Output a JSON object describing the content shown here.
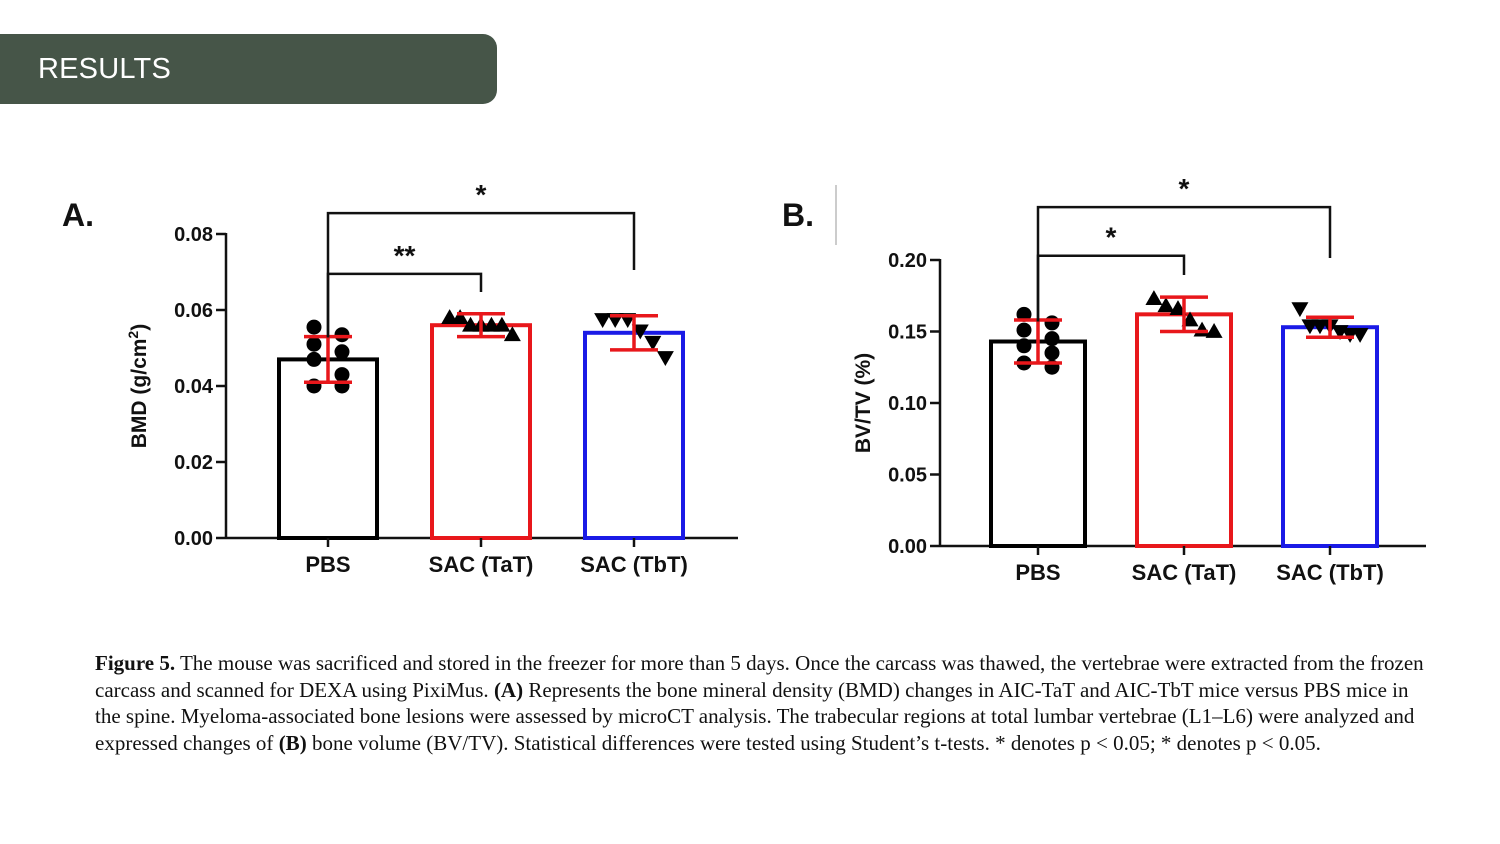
{
  "header": {
    "title": "RESULTS",
    "bg_color": "#465548"
  },
  "colors": {
    "PBS": "#000000",
    "SAC (TaT)": "#e8171b",
    "SAC (TbT)": "#1a1ae6",
    "error_bar": "#e8171b"
  },
  "caption": {
    "lead": "Figure 5.",
    "p1": " The mouse was sacrificed and stored in the freezer for more than 5 days. Once the carcass was thawed, the vertebrae were extracted from the frozen carcass and scanned for DEXA using PixiMus. ",
    "tagA": "(A)",
    "p2": " Represents the bone mineral density (BMD) changes in AIC-TaT and AIC-TbT mice versus PBS mice in the spine. Myeloma-associated bone lesions were assessed by microCT analysis. The trabecular regions at total lumbar vertebrae (L1–L6) were analyzed and expressed changes of ",
    "tagB": "(B)",
    "p3": " bone volume (BV/TV). Statistical differences were tested using Student’s t-tests. * denotes p < 0.05; * denotes p < 0.05."
  },
  "chart_data": [
    {
      "type": "bar",
      "panel": "A.",
      "ylabel": "BMD (g/cm",
      "ylabel_sup": "2",
      "ylabel_end": ")",
      "ylim": [
        0,
        0.08
      ],
      "yticks": [
        "0.00",
        "0.02",
        "0.04",
        "0.06",
        "0.08"
      ],
      "categories": [
        "PBS",
        "SAC (TaT)",
        "SAC (TbT)"
      ],
      "values": [
        0.047,
        0.056,
        0.054
      ],
      "errors": [
        0.006,
        0.003,
        0.0045
      ],
      "marker": [
        "circle",
        "triangle-up",
        "triangle-down"
      ],
      "points": [
        [
          0.0555,
          0.0535,
          0.051,
          0.049,
          0.047,
          0.043,
          0.04,
          0.04
        ],
        [
          0.058,
          0.058,
          0.056,
          0.056,
          0.056,
          0.056,
          0.0535
        ],
        [
          0.0575,
          0.0575,
          0.0575,
          0.0545,
          0.0515,
          0.0475
        ]
      ],
      "significance": [
        {
          "from": 0,
          "to": 1,
          "label": "**",
          "y": 0.0695
        },
        {
          "from": 0,
          "to": 2,
          "label": "*",
          "y": 0.0855
        }
      ]
    },
    {
      "type": "bar",
      "panel": "B.",
      "ylabel": "BV/TV (%)",
      "ylim": [
        0,
        0.2
      ],
      "yticks": [
        "0.00",
        "0.05",
        "0.10",
        "0.15",
        "0.20"
      ],
      "categories": [
        "PBS",
        "SAC (TaT)",
        "SAC (TbT)"
      ],
      "values": [
        0.143,
        0.162,
        0.153
      ],
      "errors": [
        0.015,
        0.012,
        0.007
      ],
      "marker": [
        "circle",
        "triangle-up",
        "triangle-down"
      ],
      "points": [
        [
          0.162,
          0.156,
          0.151,
          0.145,
          0.14,
          0.135,
          0.128,
          0.125
        ],
        [
          0.173,
          0.168,
          0.166,
          0.158,
          0.151,
          0.15
        ],
        [
          0.166,
          0.154,
          0.154,
          0.154,
          0.15,
          0.148,
          0.148
        ]
      ],
      "significance": [
        {
          "from": 0,
          "to": 1,
          "label": "*",
          "y": 0.203
        },
        {
          "from": 0,
          "to": 2,
          "label": "*",
          "y": 0.237
        }
      ]
    }
  ]
}
